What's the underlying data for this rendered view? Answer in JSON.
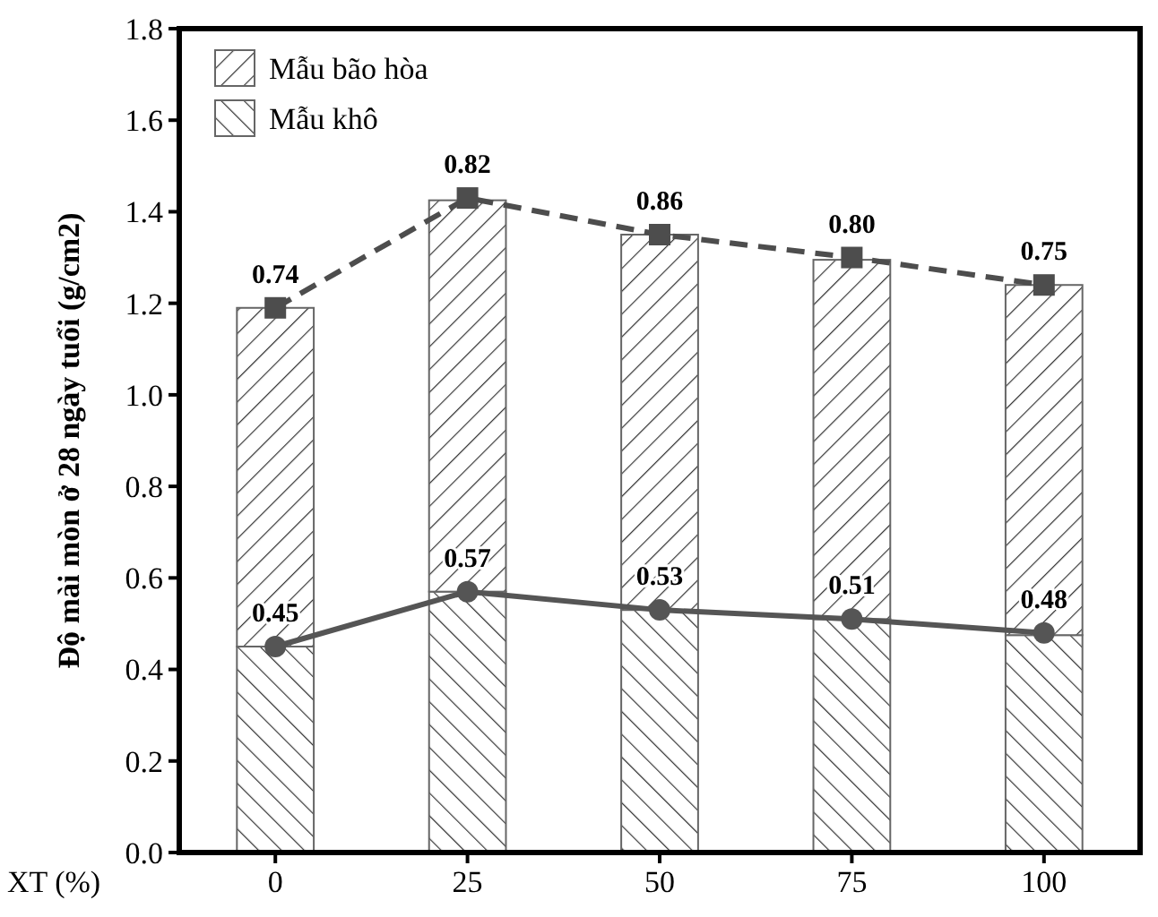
{
  "chart_data": {
    "type": "bar",
    "ylabel": "Độ mài mòn ở 28 ngày tuổi (g/cm2)",
    "xlabel": "XT (%)",
    "categories": [
      "0",
      "25",
      "50",
      "75",
      "100"
    ],
    "stacked": true,
    "series": [
      {
        "name": "Mẫu khô",
        "color": "#666666",
        "values": [
          0.45,
          0.57,
          0.53,
          0.51,
          0.475
        ]
      },
      {
        "name": "Mẫu bão hòa",
        "color": "#666666",
        "values": [
          0.74,
          0.855,
          0.82,
          0.785,
          0.765
        ]
      },
      {
        "type": "line",
        "color": "#4d4d4d",
        "marker": "square",
        "line_style": "dashed",
        "values": [
          1.19,
          1.43,
          1.35,
          1.3,
          1.24
        ]
      },
      {
        "type": "line",
        "color": "#555555",
        "marker": "circle",
        "line_style": "solid",
        "values": [
          0.45,
          0.57,
          0.53,
          0.51,
          0.48
        ],
        "value_labels": [
          "0.45",
          "0.57",
          "0.53",
          "0.51",
          "0.48"
        ]
      }
    ],
    "annotations": [
      {
        "text": "0.74",
        "x": "0",
        "y": 1.19
      },
      {
        "text": "0.82",
        "x": "25",
        "y": 1.43
      },
      {
        "text": "0.86",
        "x": "50",
        "y": 1.35
      },
      {
        "text": "0.80",
        "x": "75",
        "y": 1.3
      },
      {
        "text": "0.75",
        "x": "100",
        "y": 1.24
      }
    ],
    "ylim": [
      0,
      1.8
    ],
    "yticks": [
      "0.0",
      "0.2",
      "0.4",
      "0.6",
      "0.8",
      "1.0",
      "1.2",
      "1.4",
      "1.6",
      "1.8"
    ],
    "legend": "top left",
    "grid": false
  }
}
